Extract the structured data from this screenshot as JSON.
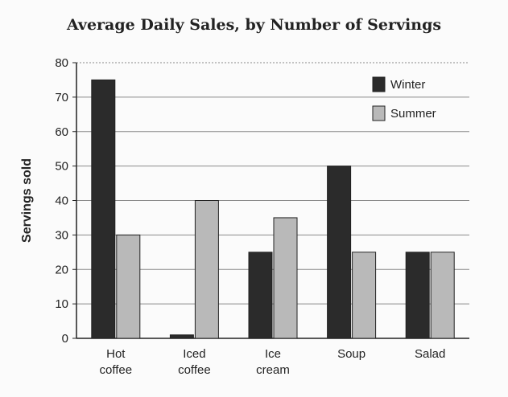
{
  "chart_data": {
    "type": "bar",
    "title": "Average Daily Sales, by Number of Servings",
    "ylabel": "Servings sold",
    "xlabel": "",
    "ylim": [
      0,
      80
    ],
    "yticks": [
      0,
      10,
      20,
      30,
      40,
      50,
      60,
      70,
      80
    ],
    "categories": [
      [
        "Hot",
        "coffee"
      ],
      [
        "Iced",
        "coffee"
      ],
      [
        "Ice",
        "cream"
      ],
      [
        "Soup"
      ],
      [
        "Salad"
      ]
    ],
    "series": [
      {
        "name": "Winter",
        "color": "#2b2b2b",
        "values": [
          75,
          1,
          25,
          50,
          25
        ]
      },
      {
        "name": "Summer",
        "color": "#b9b9b9",
        "values": [
          30,
          40,
          35,
          25,
          25
        ]
      }
    ],
    "grid": true,
    "legend_position": "top-right"
  }
}
